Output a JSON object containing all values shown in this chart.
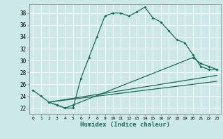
{
  "xlabel": "Humidex (Indice chaleur)",
  "bg_color": "#cce8e8",
  "grid_color": "#ffffff",
  "line_color": "#1a6b5a",
  "xlim": [
    -0.5,
    23.5
  ],
  "ylim": [
    21.0,
    39.5
  ],
  "xticks": [
    0,
    1,
    2,
    3,
    4,
    5,
    6,
    7,
    8,
    9,
    10,
    11,
    12,
    13,
    14,
    15,
    16,
    17,
    18,
    19,
    20,
    21,
    22,
    23
  ],
  "yticks": [
    22,
    24,
    26,
    28,
    30,
    32,
    34,
    36,
    38
  ],
  "series1": [
    [
      0,
      25
    ],
    [
      1,
      24
    ],
    [
      2,
      23
    ],
    [
      3,
      22.5
    ],
    [
      4,
      22
    ],
    [
      5,
      22
    ],
    [
      6,
      27
    ],
    [
      7,
      30.5
    ],
    [
      8,
      34
    ],
    [
      9,
      37.5
    ],
    [
      10,
      38
    ],
    [
      11,
      38
    ],
    [
      12,
      37.5
    ],
    [
      13,
      38.2
    ],
    [
      14,
      39
    ],
    [
      15,
      37.2
    ],
    [
      16,
      36.5
    ],
    [
      17,
      35
    ],
    [
      18,
      33.5
    ],
    [
      19,
      33
    ],
    [
      20,
      31
    ],
    [
      21,
      29
    ],
    [
      22,
      28.5
    ],
    [
      23,
      28.5
    ]
  ],
  "series2": [
    [
      2,
      23
    ],
    [
      3,
      22.5
    ],
    [
      4,
      22
    ],
    [
      5,
      22.5
    ],
    [
      20,
      30.5
    ],
    [
      21,
      29.5
    ],
    [
      22,
      29
    ],
    [
      23,
      28.5
    ]
  ],
  "series3": [
    [
      2,
      23
    ],
    [
      23,
      27.5
    ]
  ],
  "series4": [
    [
      2,
      23
    ],
    [
      23,
      26.5
    ]
  ]
}
